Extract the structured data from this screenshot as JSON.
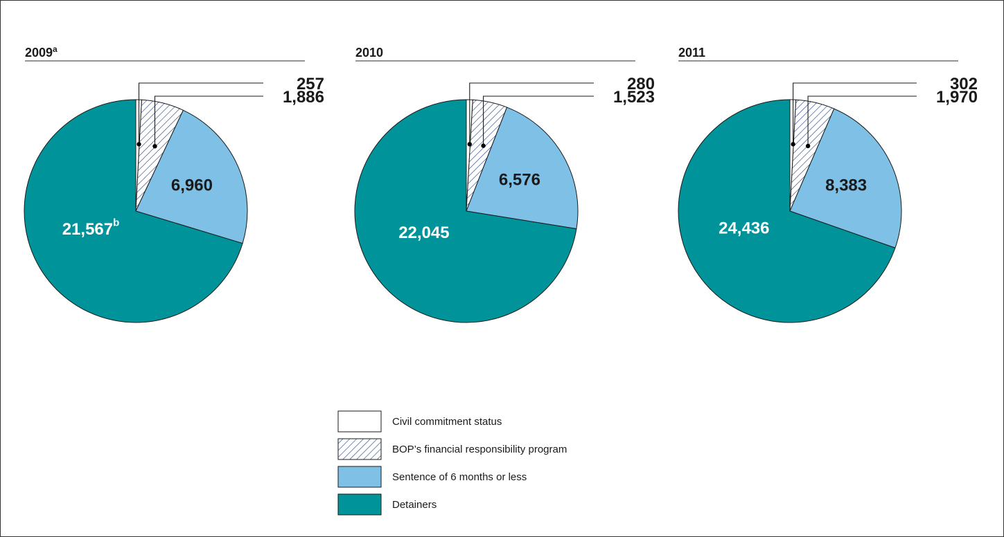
{
  "chart_data": [
    {
      "type": "pie",
      "title": "2009",
      "title_superscript": "a",
      "slices": [
        {
          "label": "Civil commitment status",
          "value": 257,
          "display": "257",
          "sup": ""
        },
        {
          "label": "BOP's financial responsibility program",
          "value": 1886,
          "display": "1,886",
          "sup": ""
        },
        {
          "label": "Sentence of 6 months or less",
          "value": 6960,
          "display": "6,960",
          "sup": ""
        },
        {
          "label": "Detainers",
          "value": 21567,
          "display": "21,567",
          "sup": "b"
        }
      ]
    },
    {
      "type": "pie",
      "title": "2010",
      "title_superscript": "",
      "slices": [
        {
          "label": "Civil commitment status",
          "value": 280,
          "display": "280",
          "sup": ""
        },
        {
          "label": "BOP's financial responsibility program",
          "value": 1523,
          "display": "1,523",
          "sup": ""
        },
        {
          "label": "Sentence of 6 months or less",
          "value": 6576,
          "display": "6,576",
          "sup": ""
        },
        {
          "label": "Detainers",
          "value": 22045,
          "display": "22,045",
          "sup": ""
        }
      ]
    },
    {
      "type": "pie",
      "title": "2011",
      "title_superscript": "",
      "slices": [
        {
          "label": "Civil commitment status",
          "value": 302,
          "display": "302",
          "sup": ""
        },
        {
          "label": "BOP's financial responsibility program",
          "value": 1970,
          "display": "1,970",
          "sup": ""
        },
        {
          "label": "Sentence of 6 months or less",
          "value": 8383,
          "display": "8,383",
          "sup": ""
        },
        {
          "label": "Detainers",
          "value": 24436,
          "display": "24,436",
          "sup": ""
        }
      ]
    }
  ],
  "legend": [
    {
      "label": "Civil commitment status",
      "style": "plain",
      "color": "#ffffff"
    },
    {
      "label": "BOP’s financial responsibility program",
      "style": "hatch",
      "color": "#ffffff"
    },
    {
      "label": "Sentence of 6 months or less",
      "style": "plain",
      "color": "#7fc1e6"
    },
    {
      "label": "Detainers",
      "style": "plain",
      "color": "#00939a"
    }
  ],
  "colors": {
    "civil": "#ffffff",
    "hatch": "#2d4a8a",
    "sentence": "#7fc1e6",
    "detainers": "#00939a",
    "outline": "#1a1a1a"
  }
}
